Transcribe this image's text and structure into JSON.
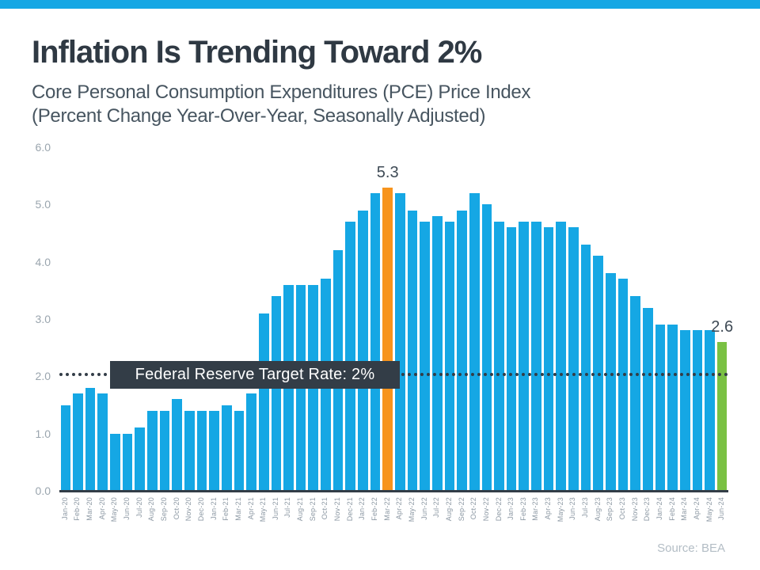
{
  "header": {
    "title": "Inflation Is Trending Toward 2%",
    "subtitle_line1": "Core Personal Consumption Expenditures (PCE) Price Index",
    "subtitle_line2": "(Percent Change Year-Over-Year, Seasonally Adjusted)"
  },
  "colors": {
    "banner_blue": "#15a7e4",
    "bar_blue": "#15a7e4",
    "highlight_orange": "#f7941d",
    "highlight_green": "#7ac143",
    "dark_slate": "#333d47"
  },
  "chart_data": {
    "type": "bar",
    "title": "Inflation Is Trending Toward 2%",
    "subtitle": "Core Personal Consumption Expenditures (PCE) Price Index (Percent Change Year-Over-Year, Seasonally Adjusted)",
    "xlabel": "",
    "ylabel": "",
    "ylim": [
      0,
      6
    ],
    "grid": false,
    "legend": false,
    "y_ticks": [
      "6.0",
      "5.0",
      "4.0",
      "3.0",
      "2.0",
      "1.0",
      "0.0"
    ],
    "categories": [
      "Jan-20",
      "Feb-20",
      "Mar-20",
      "Apr-20",
      "May-20",
      "Jun-20",
      "Jul-20",
      "Aug-20",
      "Sep-20",
      "Oct-20",
      "Nov-20",
      "Dec-20",
      "Jan-21",
      "Feb-21",
      "Mar-21",
      "Apr-21",
      "May-21",
      "Jun-21",
      "Jul-21",
      "Aug-21",
      "Sep-21",
      "Oct-21",
      "Nov-21",
      "Dec-21",
      "Jan-22",
      "Feb-22",
      "Mar-22",
      "Apr-22",
      "May-22",
      "Jun-22",
      "Jul-22",
      "Aug-22",
      "Sep-22",
      "Oct-22",
      "Nov-22",
      "Dec-22",
      "Jan-23",
      "Feb-23",
      "Mar-23",
      "Apr-23",
      "May-23",
      "Jun-23",
      "Jul-23",
      "Aug-23",
      "Sep-23",
      "Oct-23",
      "Nov-23",
      "Dec-23",
      "Jan-24",
      "Feb-24",
      "Mar-24",
      "Apr-24",
      "May-24",
      "Jun-24"
    ],
    "values": [
      1.5,
      1.7,
      1.8,
      1.7,
      1.0,
      1.0,
      1.1,
      1.4,
      1.4,
      1.6,
      1.4,
      1.4,
      1.4,
      1.5,
      1.4,
      1.7,
      3.1,
      3.4,
      3.6,
      3.6,
      3.6,
      3.7,
      4.2,
      4.7,
      4.9,
      5.2,
      5.3,
      5.2,
      4.9,
      4.7,
      4.8,
      4.7,
      4.9,
      5.2,
      5.0,
      4.7,
      4.6,
      4.7,
      4.7,
      4.6,
      4.7,
      4.6,
      4.3,
      4.1,
      3.8,
      3.7,
      3.4,
      3.2,
      2.9,
      2.9,
      2.8,
      2.8,
      2.8,
      2.6
    ],
    "highlights": [
      {
        "category": "Mar-22",
        "value_label": "5.3",
        "color": "#f7941d"
      },
      {
        "category": "Jun-24",
        "value_label": "2.6",
        "color": "#7ac143"
      }
    ],
    "target_line": {
      "value": 2.0,
      "label": "Federal Reserve Target Rate: 2%"
    }
  },
  "footer": {
    "source": "Source: BEA"
  }
}
